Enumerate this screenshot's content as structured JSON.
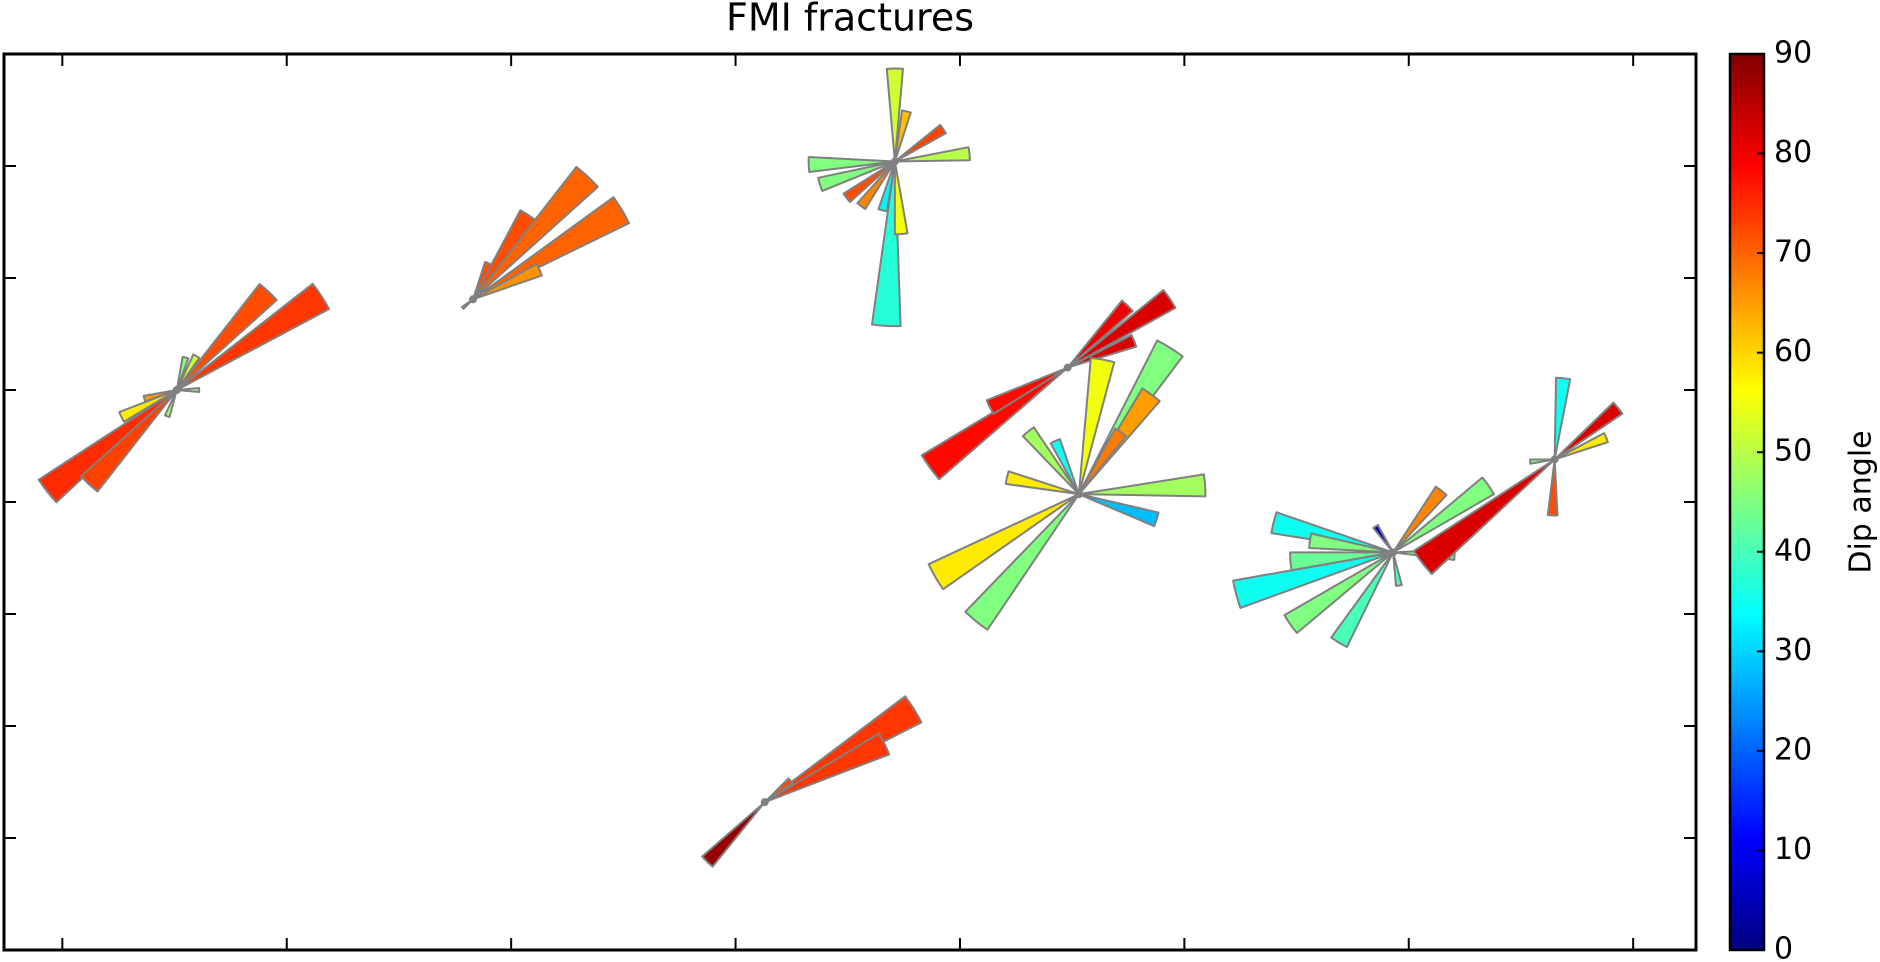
{
  "chart_data": {
    "type": "rose_map",
    "title": "FMI fractures",
    "xlim": [
      -0.26,
      7.28
    ],
    "xticks": [
      0,
      1,
      2,
      3,
      4,
      5,
      6,
      7
    ],
    "ylim": [
      -1,
      7
    ],
    "yticks": [
      0,
      1,
      2,
      3,
      4,
      5,
      6
    ],
    "colormap": "jet",
    "clim": [
      0,
      90
    ],
    "cticks": [
      0,
      10,
      20,
      30,
      40,
      50,
      60,
      70,
      80,
      90
    ],
    "colorbar_label": "Dip angle",
    "bin_width": 10,
    "roses": [
      {
        "x": 0.51,
        "y": 4.0,
        "petals": [
          {
            "direction": 232,
            "length": 1.47,
            "dip": 75
          },
          {
            "direction": 223,
            "length": 1.15,
            "dip": 73
          },
          {
            "direction": 57,
            "length": 1.54,
            "dip": 74
          },
          {
            "direction": 43,
            "length": 1.2,
            "dip": 72
          },
          {
            "direction": 244,
            "length": 0.55,
            "dip": 58
          },
          {
            "direction": 30,
            "length": 0.35,
            "dip": 52
          },
          {
            "direction": 15,
            "length": 0.3,
            "dip": 45
          },
          {
            "direction": 255,
            "length": 0.3,
            "dip": 65
          },
          {
            "direction": 200,
            "length": 0.25,
            "dip": 48
          },
          {
            "direction": 90,
            "length": 0.2,
            "dip": 45
          }
        ]
      },
      {
        "x": 1.83,
        "y": 4.81,
        "petals": [
          {
            "direction": 59,
            "length": 1.55,
            "dip": 70
          },
          {
            "direction": 43,
            "length": 1.5,
            "dip": 70
          },
          {
            "direction": 33,
            "length": 0.9,
            "dip": 72
          },
          {
            "direction": 66,
            "length": 0.65,
            "dip": 66
          },
          {
            "direction": 23,
            "length": 0.35,
            "dip": 72
          },
          {
            "direction": 230,
            "length": 0.12,
            "dip": 70
          }
        ]
      },
      {
        "x": 3.71,
        "y": 6.04,
        "petals": [
          {
            "direction": 0,
            "length": 0.83,
            "dip": 52
          },
          {
            "direction": 183,
            "length": 1.47,
            "dip": 37
          },
          {
            "direction": 175,
            "length": 0.65,
            "dip": 55
          },
          {
            "direction": 268,
            "length": 0.77,
            "dip": 45
          },
          {
            "direction": 84,
            "length": 0.67,
            "dip": 50
          },
          {
            "direction": 56,
            "length": 0.52,
            "dip": 73
          },
          {
            "direction": 233,
            "length": 0.54,
            "dip": 72
          },
          {
            "direction": 217,
            "length": 0.5,
            "dip": 67
          },
          {
            "direction": 13,
            "length": 0.46,
            "dip": 62
          },
          {
            "direction": 253,
            "length": 0.7,
            "dip": 45
          },
          {
            "direction": 194,
            "length": 0.45,
            "dip": 33
          }
        ]
      },
      {
        "x": 4.48,
        "y": 4.2,
        "petals": [
          {
            "direction": 234,
            "length": 1.52,
            "dip": 78
          },
          {
            "direction": 243,
            "length": 0.78,
            "dip": 78
          },
          {
            "direction": 56,
            "length": 1.1,
            "dip": 82
          },
          {
            "direction": 44,
            "length": 0.77,
            "dip": 80
          },
          {
            "direction": 68,
            "length": 0.64,
            "dip": 82
          }
        ]
      },
      {
        "x": 4.53,
        "y": 3.07,
        "petals": [
          {
            "direction": 240,
            "length": 1.48,
            "dip": 58
          },
          {
            "direction": 219,
            "length": 1.46,
            "dip": 45
          },
          {
            "direction": 86,
            "length": 1.13,
            "dip": 48
          },
          {
            "direction": 108,
            "length": 0.73,
            "dip": 28
          },
          {
            "direction": 10,
            "length": 1.22,
            "dip": 55
          },
          {
            "direction": 32,
            "length": 1.54,
            "dip": 45
          },
          {
            "direction": 36,
            "length": 1.1,
            "dip": 65
          },
          {
            "direction": 321,
            "length": 0.72,
            "dip": 48
          },
          {
            "direction": 336,
            "length": 0.52,
            "dip": 35
          },
          {
            "direction": 283,
            "length": 0.66,
            "dip": 58
          },
          {
            "direction": 34,
            "length": 0.67,
            "dip": 68
          }
        ]
      },
      {
        "x": 5.93,
        "y": 2.55,
        "petals": [
          {
            "direction": 255,
            "length": 1.45,
            "dip": 35
          },
          {
            "direction": 235,
            "length": 1.12,
            "dip": 45
          },
          {
            "direction": 211,
            "length": 0.94,
            "dip": 40
          },
          {
            "direction": 284,
            "length": 1.1,
            "dip": 35
          },
          {
            "direction": 265,
            "length": 0.92,
            "dip": 43
          },
          {
            "direction": 278,
            "length": 0.75,
            "dip": 45
          },
          {
            "direction": 55,
            "length": 1.04,
            "dip": 45
          },
          {
            "direction": 38,
            "length": 0.7,
            "dip": 67
          },
          {
            "direction": 326,
            "length": 0.28,
            "dip": 5
          },
          {
            "direction": 92,
            "length": 0.55,
            "dip": 45
          },
          {
            "direction": 170,
            "length": 0.3,
            "dip": 40
          }
        ]
      },
      {
        "x": 6.65,
        "y": 3.38,
        "petals": [
          {
            "direction": 232,
            "length": 1.5,
            "dip": 82
          },
          {
            "direction": 51,
            "length": 0.73,
            "dip": 82
          },
          {
            "direction": 6,
            "length": 0.73,
            "dip": 35
          },
          {
            "direction": 67,
            "length": 0.5,
            "dip": 58
          },
          {
            "direction": 182,
            "length": 0.5,
            "dip": 72
          },
          {
            "direction": 265,
            "length": 0.22,
            "dip": 45
          }
        ]
      },
      {
        "x": 3.13,
        "y": 0.32,
        "petals": [
          {
            "direction": 58,
            "length": 1.57,
            "dip": 74
          },
          {
            "direction": 64,
            "length": 1.19,
            "dip": 74
          },
          {
            "direction": 224,
            "length": 0.74,
            "dip": 88
          },
          {
            "direction": 50,
            "length": 0.3,
            "dip": 72
          }
        ]
      }
    ]
  }
}
